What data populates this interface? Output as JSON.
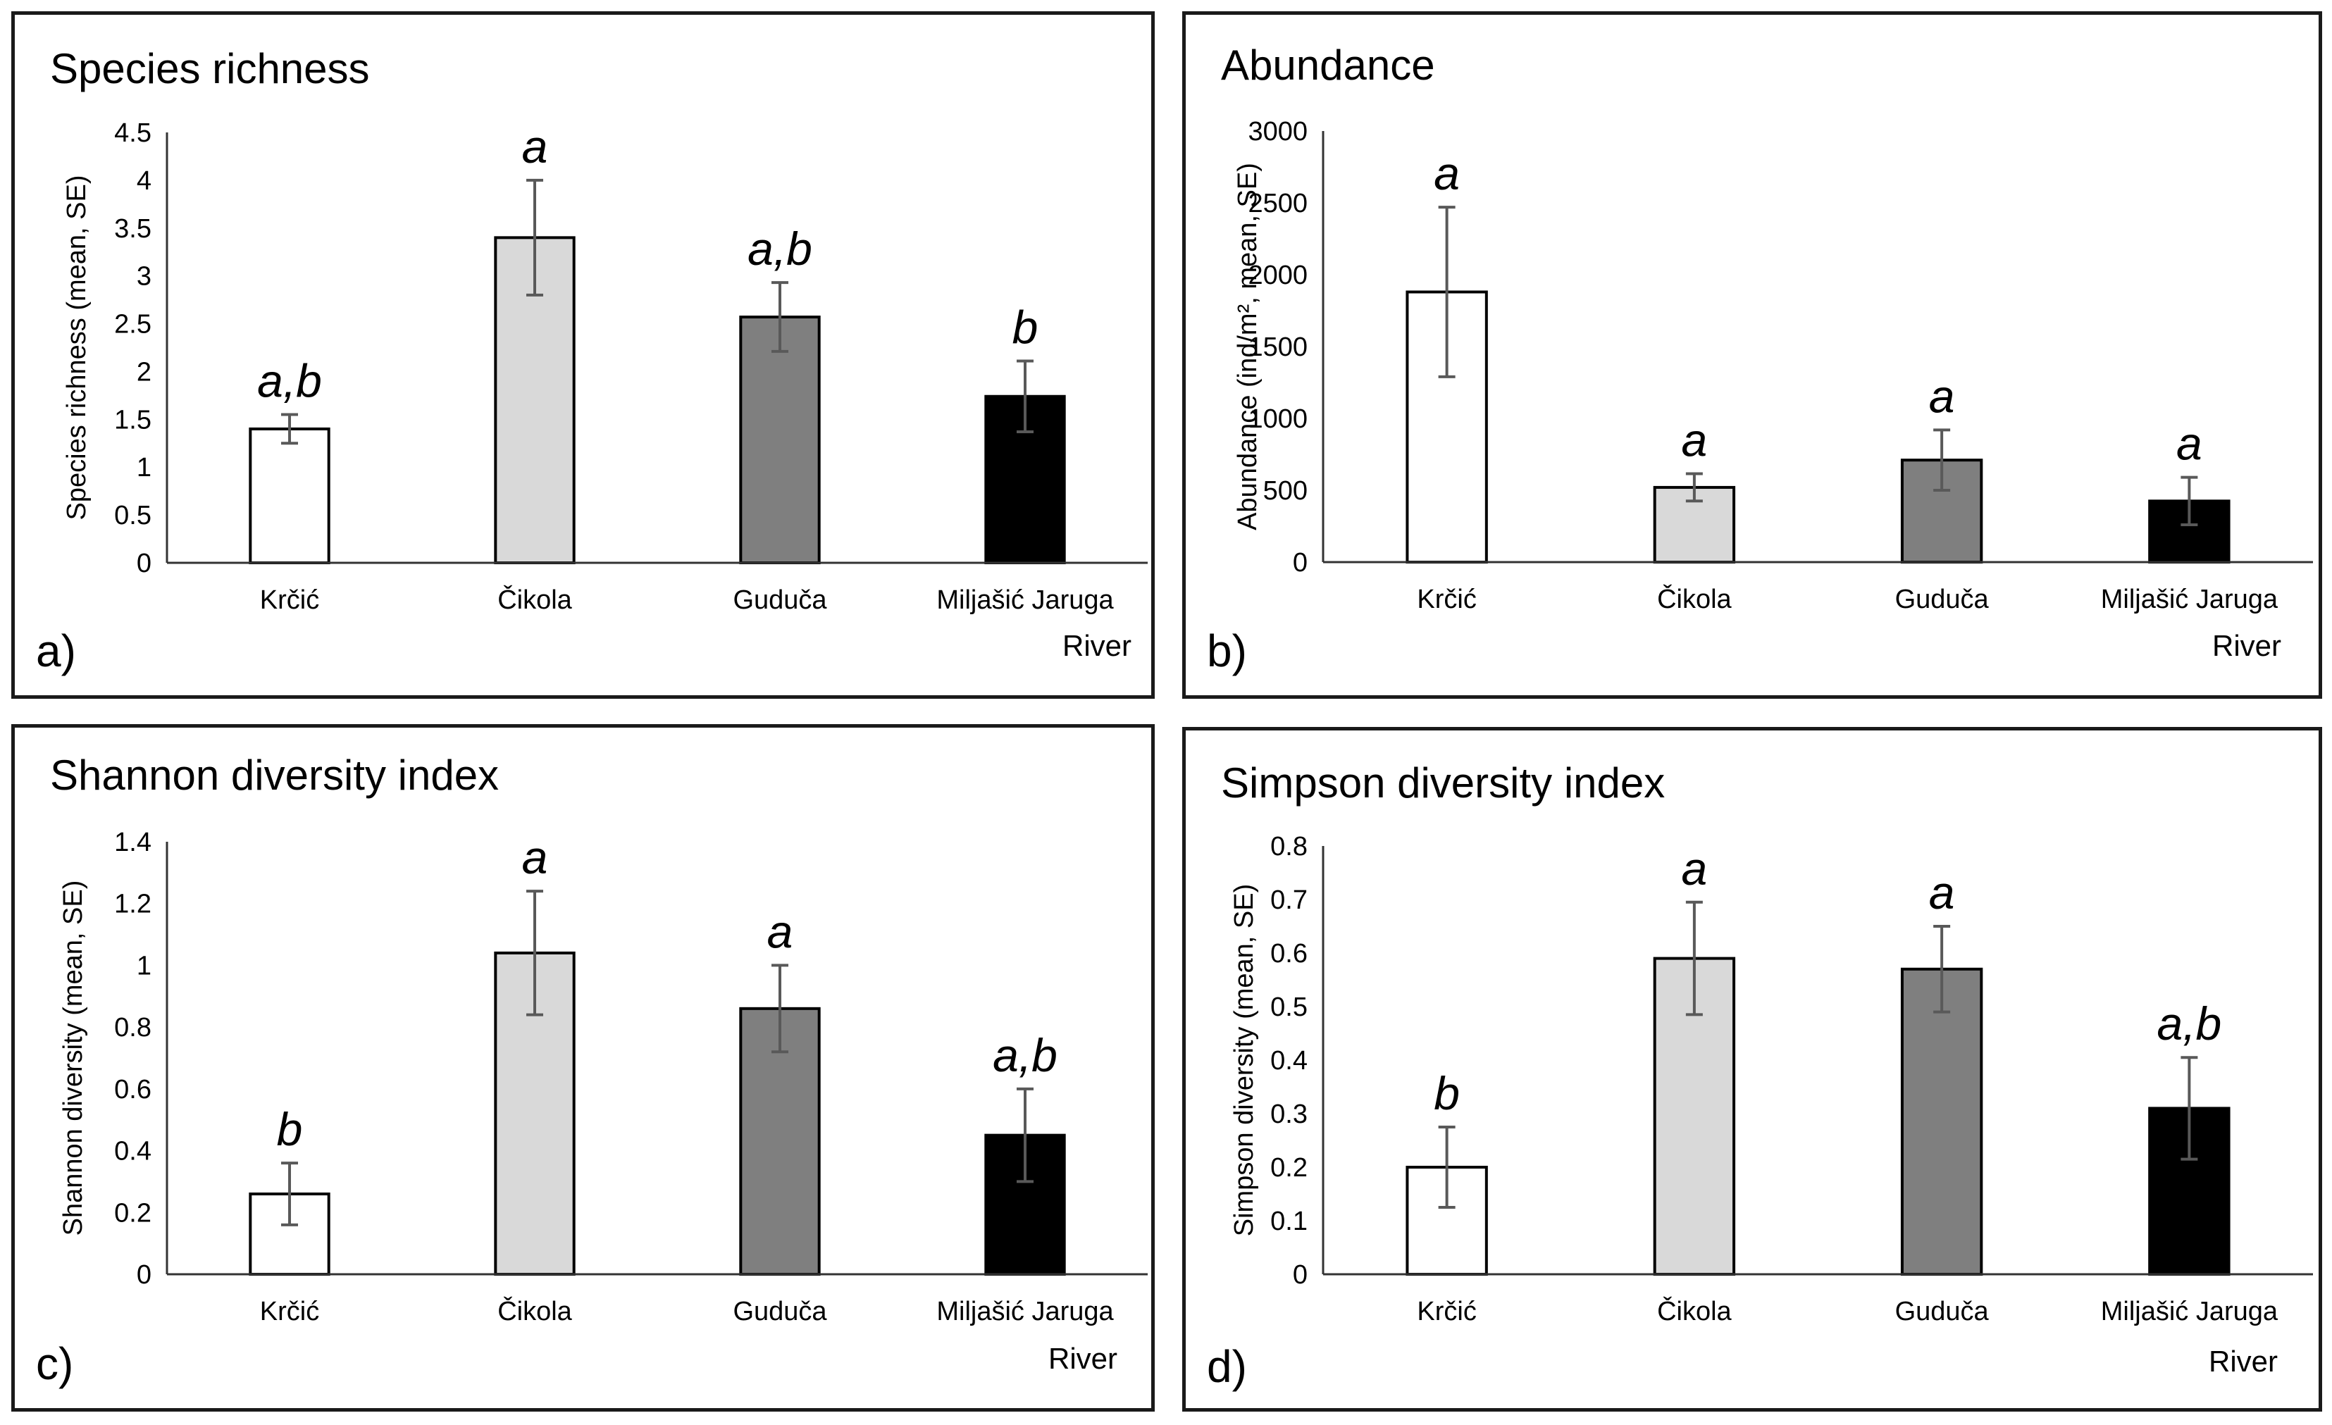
{
  "colors": {
    "Krčić": "#ffffff",
    "Čikola": "#d9d9d9",
    "Guduča": "#7f7f7f",
    "Miljašić Jaruga": "#000000",
    "error_bar": "#595959"
  },
  "chart_data": [
    {
      "panel": "a)",
      "type": "bar",
      "title": "Species richness",
      "xlabel": "River",
      "ylabel": "Species richness (mean, SE)",
      "categories": [
        "Krčić",
        "Čikola",
        "Guduča",
        "Miljašić Jaruga"
      ],
      "values": [
        1.4,
        3.4,
        2.57,
        1.74
      ],
      "errors": [
        0.15,
        0.6,
        0.36,
        0.37
      ],
      "significance": [
        "a,b",
        "a",
        "a,b",
        "b"
      ],
      "ylim": [
        0,
        4.5
      ],
      "yticks": [
        "0",
        "0.5",
        "1",
        "1.5",
        "2",
        "2.5",
        "3",
        "3.5",
        "4",
        "4.5"
      ],
      "grid": false
    },
    {
      "panel": "b)",
      "type": "bar",
      "title": "Abundance",
      "xlabel": "River",
      "ylabel": "Abundance  (ind/m², mean, SE)",
      "categories": [
        "Krčić",
        "Čikola",
        "Guduča",
        "Miljašić Jaruga"
      ],
      "values": [
        1880,
        520,
        710,
        425
      ],
      "errors": [
        590,
        95,
        210,
        165
      ],
      "significance": [
        "a",
        "a",
        "a",
        "a"
      ],
      "ylim": [
        0,
        3000
      ],
      "yticks": [
        "0",
        "500",
        "1000",
        "1500",
        "2000",
        "2500",
        "3000"
      ],
      "grid": false
    },
    {
      "panel": "c)",
      "type": "bar",
      "title": "Shannon diversity index",
      "xlabel": "River",
      "ylabel": "Shannon diversity (mean, SE)",
      "categories": [
        "Krčić",
        "Čikola",
        "Guduča",
        "Miljašić Jaruga"
      ],
      "values": [
        0.26,
        1.04,
        0.86,
        0.45
      ],
      "errors": [
        0.1,
        0.2,
        0.14,
        0.15
      ],
      "significance": [
        "b",
        "a",
        "a",
        "a,b"
      ],
      "ylim": [
        0,
        1.4
      ],
      "yticks": [
        "0",
        "0.2",
        "0.4",
        "0.6",
        "0.8",
        "1",
        "1.2",
        "1.4"
      ],
      "grid": false
    },
    {
      "panel": "d)",
      "type": "bar",
      "title": "Simpson diversity index",
      "xlabel": "River",
      "ylabel": "Simpson diversity (mean, SE)",
      "categories": [
        "Krčić",
        "Čikola",
        "Guduča",
        "Miljašić Jaruga"
      ],
      "values": [
        0.2,
        0.59,
        0.57,
        0.31
      ],
      "errors": [
        0.075,
        0.105,
        0.08,
        0.095
      ],
      "significance": [
        "b",
        "a",
        "a",
        "a,b"
      ],
      "ylim": [
        0,
        0.8
      ],
      "yticks": [
        "0",
        "0.1",
        "0.2",
        "0.3",
        "0.4",
        "0.5",
        "0.6",
        "0.7",
        "0.8"
      ],
      "grid": false
    }
  ]
}
